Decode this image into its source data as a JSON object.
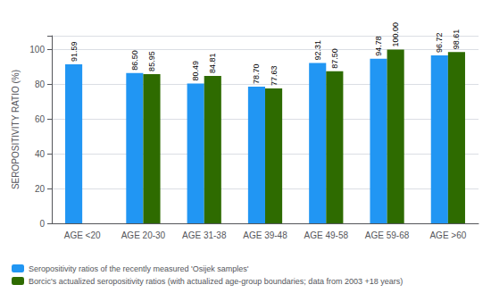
{
  "chart_data": {
    "type": "bar",
    "ylabel": "SEROPOSITIVITY RATIO (%)",
    "categories": [
      "AGE <20",
      "AGE 20-30",
      "AGE 31-38",
      "AGE 39-48",
      "AGE 49-58",
      "AGE 59-68",
      "AGE >60"
    ],
    "series": [
      {
        "name": "Seropositivity ratios of the recently measured 'Osijek samples'",
        "color": "#2196F3",
        "values": [
          91.59,
          86.5,
          80.49,
          78.7,
          92.31,
          94.78,
          96.72
        ],
        "value_labels": [
          "91.59",
          "86.50",
          "80.49",
          "78.70",
          "92.31",
          "94.78",
          "96.72"
        ]
      },
      {
        "name": "Borcic's actualized seropositivity ratios (with actualized age-group boundaries; data from 2003 +18 years)",
        "color": "#2E6B00",
        "values": [
          null,
          85.95,
          84.81,
          77.63,
          87.5,
          100.0,
          98.61
        ],
        "value_labels": [
          null,
          "85.95",
          "84.81",
          "77.63",
          "87.50",
          "100.00",
          "98.61"
        ]
      }
    ],
    "ylim": [
      0,
      108
    ],
    "yticks": [
      0,
      20,
      40,
      60,
      80,
      100
    ],
    "grid": true,
    "legend": "bottom left",
    "data_labels": true
  }
}
